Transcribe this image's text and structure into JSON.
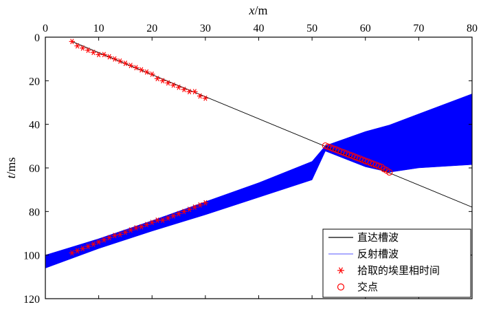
{
  "chart_data": {
    "type": "line",
    "xlabel": "x/m",
    "ylabel": "t/ms",
    "xlim": [
      0,
      80
    ],
    "ylim": [
      0,
      120
    ],
    "y_inverted": true,
    "x_axis_position": "top",
    "xticks": [
      "0",
      "10",
      "20",
      "30",
      "40",
      "50",
      "60",
      "70",
      "80"
    ],
    "yticks": [
      "0",
      "20",
      "40",
      "60",
      "80",
      "100",
      "120"
    ],
    "legend_position": "bottom-right",
    "colors": {
      "direct": "#000000",
      "reflected_band": "#0000ff",
      "reflected_legend": "#7777ff",
      "picks": "#ff0000",
      "intersections": "#ff0000"
    },
    "series": [
      {
        "name": "直达槽波",
        "kind": "line",
        "x": [
          5,
          80
        ],
        "y": [
          2.0,
          78.0
        ]
      },
      {
        "name": "反射槽波",
        "kind": "band",
        "x": [
          0,
          10,
          20,
          30,
          40,
          50,
          52.5,
          60,
          64.5,
          70,
          80
        ],
        "y_upper": [
          100.0,
          92.5,
          84.2,
          75.5,
          66.8,
          57.0,
          49.8,
          43.3,
          40.3,
          35.2,
          26.0
        ],
        "y_lower": [
          106.0,
          97.0,
          89.0,
          81.5,
          73.5,
          65.5,
          52.3,
          59.5,
          62.0,
          60.0,
          58.5
        ]
      },
      {
        "name": "拾取的埃里相时间",
        "kind": "scatter",
        "marker": "asterisk",
        "x": [
          5,
          6,
          7,
          8,
          9,
          10,
          11,
          12,
          13,
          14,
          15,
          16,
          17,
          18,
          19,
          20,
          21,
          22,
          23,
          24,
          25,
          26,
          27,
          28,
          29,
          30,
          5,
          6,
          7,
          8,
          9,
          10,
          11,
          12,
          13,
          14,
          15,
          16,
          17,
          18,
          19,
          20,
          21,
          22,
          23,
          24,
          25,
          26,
          27,
          28,
          29,
          30
        ],
        "y": [
          2.0,
          4.0,
          5.0,
          6.0,
          7.0,
          8.0,
          8.0,
          9.0,
          10.0,
          11.0,
          12.0,
          13.0,
          14.0,
          15.0,
          16.0,
          17.0,
          19.0,
          20.0,
          21.0,
          22.0,
          23.0,
          24.0,
          25.0,
          25.0,
          27.0,
          28.0,
          99.0,
          98.0,
          97.0,
          96.0,
          95.0,
          94.0,
          93.0,
          92.0,
          91.0,
          90.5,
          89.5,
          88.5,
          87.5,
          87.0,
          86.0,
          85.0,
          84.0,
          84.0,
          83.0,
          82.0,
          81.0,
          80.0,
          79.0,
          78.0,
          77.0,
          76.0
        ]
      },
      {
        "name": "交点",
        "kind": "scatter",
        "marker": "circle",
        "x": [
          52.5,
          53.0,
          53.5,
          54.0,
          54.5,
          55.0,
          55.5,
          56.0,
          56.5,
          57.0,
          57.5,
          58.0,
          58.5,
          59.0,
          59.5,
          60.0,
          60.5,
          61.0,
          61.5,
          62.0,
          62.5,
          63.0,
          63.5,
          64.0,
          64.5
        ],
        "y": [
          49.8,
          50.3,
          50.7,
          51.2,
          51.6,
          52.1,
          52.6,
          53.0,
          53.5,
          54.0,
          54.4,
          54.9,
          55.4,
          55.8,
          56.3,
          56.8,
          57.2,
          57.7,
          58.2,
          58.6,
          59.1,
          59.6,
          60.5,
          61.2,
          62.0
        ]
      }
    ]
  }
}
